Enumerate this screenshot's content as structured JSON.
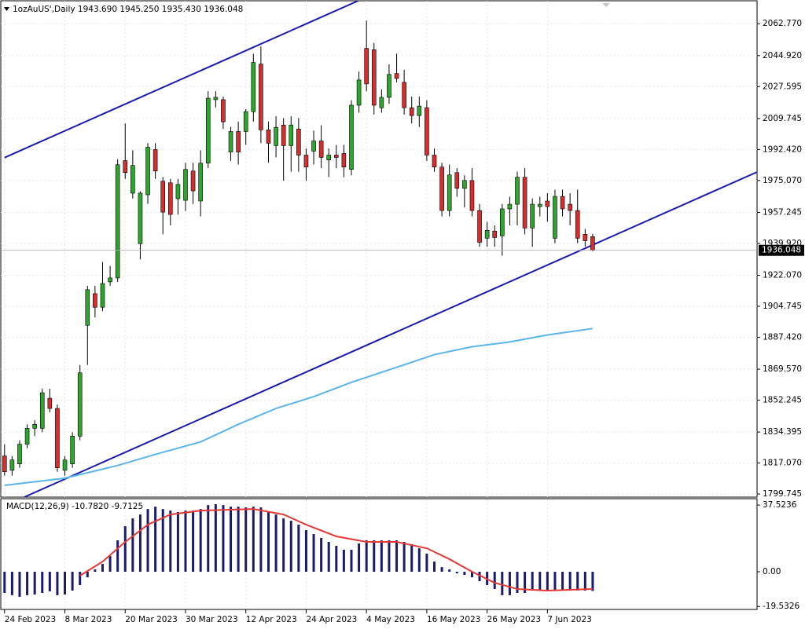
{
  "chart_data": [
    {
      "type": "candlestick",
      "title": "1ozAuUS',Daily 1943.690 1945.250 1935.430 1936.048",
      "up_color": "#2fa52f",
      "down_color": "#d32f2f",
      "wick_color": "#000000",
      "ohlc": [
        [
          1821.0,
          1827.6,
          1810.0,
          1812.2
        ],
        [
          1813.0,
          1821.0,
          1810.0,
          1818.8
        ],
        [
          1816.6,
          1829.8,
          1814.4,
          1827.6
        ],
        [
          1827.6,
          1838.7,
          1825.4,
          1836.5
        ],
        [
          1836.5,
          1841.0,
          1832.1,
          1838.7
        ],
        [
          1836.5,
          1858.6,
          1834.3,
          1856.4
        ],
        [
          1853.3,
          1858.6,
          1845.4,
          1847.6
        ],
        [
          1847.6,
          1849.8,
          1812.2,
          1814.4
        ],
        [
          1813.0,
          1821.0,
          1810.0,
          1818.8
        ],
        [
          1816.6,
          1834.3,
          1814.4,
          1832.1
        ],
        [
          1832.1,
          1871.9,
          1829.8,
          1867.5
        ],
        [
          1894.1,
          1916.2,
          1871.9,
          1914.0
        ],
        [
          1911.8,
          1916.2,
          1898.5,
          1904.2
        ],
        [
          1904.2,
          1929.5,
          1902.0,
          1917.5
        ],
        [
          1918.4,
          1927.3,
          1916.2,
          1920.6
        ],
        [
          1920.6,
          1987.0,
          1918.4,
          1983.9
        ],
        [
          1986.2,
          2007.0,
          1976.0,
          1979.5
        ],
        [
          1968.0,
          1992.0,
          1965.0,
          1983.5
        ],
        [
          1939.7,
          1969.0,
          1931.0,
          1968.0
        ],
        [
          1967.1,
          1996.0,
          1962.0,
          1993.7
        ],
        [
          1992.4,
          1996.0,
          1976.0,
          1980.4
        ],
        [
          1974.7,
          1977.0,
          1945.0,
          1957.4
        ],
        [
          1973.8,
          1976.0,
          1950.0,
          1956.1
        ],
        [
          1964.9,
          1976.0,
          1956.0,
          1972.9
        ],
        [
          1964.0,
          1985.0,
          1958.0,
          1981.3
        ],
        [
          1980.4,
          1985.0,
          1962.0,
          1969.3
        ],
        [
          1963.6,
          1992.0,
          1955.0,
          1984.8
        ],
        [
          1984.8,
          2025.0,
          1982.0,
          2021.1
        ],
        [
          2020.3,
          2025.0,
          2016.0,
          2021.6
        ],
        [
          2020.3,
          2022.0,
          2004.0,
          2007.9
        ],
        [
          1991.0,
          2005.0,
          1986.0,
          2002.5
        ],
        [
          2002.5,
          2008.0,
          1984.0,
          1991.0
        ],
        [
          2002.5,
          2015.0,
          1995.0,
          2013.6
        ],
        [
          2013.6,
          2046.0,
          2008.0,
          2041.1
        ],
        [
          2040.2,
          2050.0,
          1996.0,
          2003.4
        ],
        [
          2003.4,
          2008.0,
          1985.0,
          1995.9
        ],
        [
          1994.6,
          2011.0,
          1988.0,
          2004.8
        ],
        [
          2006.1,
          2010.0,
          1975.0,
          1994.6
        ],
        [
          1994.6,
          2011.0,
          1980.0,
          2006.1
        ],
        [
          2003.9,
          2010.0,
          1980.0,
          1989.3
        ],
        [
          1989.3,
          1993.0,
          1975.0,
          1982.6
        ],
        [
          1991.5,
          2003.0,
          1984.0,
          1997.2
        ],
        [
          1997.2,
          2006.0,
          1982.0,
          1988.0
        ],
        [
          1986.6,
          1993.0,
          1977.0,
          1989.3
        ],
        [
          1989.3,
          1995.0,
          1982.0,
          1988.0
        ],
        [
          1990.2,
          1995.0,
          1977.0,
          1982.6
        ],
        [
          1981.3,
          2020.0,
          1978.0,
          2017.2
        ],
        [
          2017.2,
          2036.0,
          2013.0,
          2031.3
        ],
        [
          2049.0,
          2064.5,
          2025.0,
          2029.1
        ],
        [
          2048.2,
          2052.0,
          2012.0,
          2017.2
        ],
        [
          2015.8,
          2026.0,
          2013.0,
          2021.6
        ],
        [
          2021.6,
          2040.0,
          2018.0,
          2034.4
        ],
        [
          2034.9,
          2046.0,
          2030.0,
          2032.2
        ],
        [
          2030.0,
          2037.0,
          2012.0,
          2015.8
        ],
        [
          2015.8,
          2022.0,
          2007.0,
          2011.4
        ],
        [
          2011.4,
          2022.0,
          2005.0,
          2016.7
        ],
        [
          2015.8,
          2020.0,
          1986.0,
          1989.3
        ],
        [
          1989.3,
          1993.0,
          1980.0,
          1982.6
        ],
        [
          1982.6,
          1985.0,
          1955.0,
          1958.3
        ],
        [
          1958.3,
          1984.0,
          1955.0,
          1978.2
        ],
        [
          1979.5,
          1982.0,
          1966.0,
          1970.7
        ],
        [
          1970.7,
          1978.0,
          1960.0,
          1975.1
        ],
        [
          1975.1,
          1982.0,
          1955.0,
          1958.3
        ],
        [
          1958.3,
          1962.0,
          1938.0,
          1940.5
        ],
        [
          1942.8,
          1952.0,
          1938.0,
          1947.2
        ],
        [
          1946.8,
          1950.0,
          1938.0,
          1943.2
        ],
        [
          1944.1,
          1962.0,
          1933.0,
          1959.2
        ],
        [
          1959.2,
          1966.0,
          1950.0,
          1961.8
        ],
        [
          1961.8,
          1980.0,
          1950.0,
          1976.9
        ],
        [
          1976.9,
          1982.0,
          1945.0,
          1948.5
        ],
        [
          1948.5,
          1965.0,
          1938.0,
          1961.8
        ],
        [
          1960.5,
          1966.0,
          1955.0,
          1961.8
        ],
        [
          1963.6,
          1968.0,
          1952.0,
          1960.5
        ],
        [
          1942.8,
          1970.0,
          1940.0,
          1966.2
        ],
        [
          1966.2,
          1970.0,
          1955.0,
          1959.2
        ],
        [
          1961.8,
          1968.0,
          1950.0,
          1958.3
        ],
        [
          1958.3,
          1970.0,
          1940.0,
          1942.8
        ],
        [
          1945.0,
          1948.0,
          1938.0,
          1941.4
        ],
        [
          1943.69,
          1945.25,
          1935.43,
          1936.048
        ]
      ],
      "moving_average": {
        "color": "#5ab4ee",
        "x": [
          0,
          8,
          15,
          20,
          26,
          31,
          36,
          41,
          46,
          52,
          57,
          62,
          67,
          72,
          78
        ],
        "values": [
          1804.6,
          1808.6,
          1815.7,
          1821.9,
          1828.9,
          1838.7,
          1847.6,
          1854.2,
          1862.2,
          1870.6,
          1877.7,
          1882.1,
          1884.8,
          1888.7,
          1892.3
        ]
      },
      "trendlines": [
        {
          "color": "#1a1ab0",
          "x": [
            0,
            46.9
          ],
          "values": [
            1987.9,
            2075.6
          ]
        },
        {
          "color": "#1a1ab0",
          "x": [
            2.6,
            100
          ],
          "values": [
            1798.0,
            1980.2
          ]
        }
      ],
      "xlim": [
        -0.5,
        99.8
      ],
      "xticks": [
        {
          "value": 0,
          "label": "24 Feb 2023"
        },
        {
          "value": 8,
          "label": "8 Mar 2023"
        },
        {
          "value": 16,
          "label": "20 Mar 2023"
        },
        {
          "value": 24,
          "label": "30 Mar 2023"
        },
        {
          "value": 32,
          "label": "12 Apr 2023"
        },
        {
          "value": 40,
          "label": "24 Apr 2023"
        },
        {
          "value": 48,
          "label": "4 May 2023"
        },
        {
          "value": 56,
          "label": "16 May 2023"
        },
        {
          "value": 64,
          "label": "26 May 2023"
        },
        {
          "value": 72,
          "label": "7 Jun 2023"
        }
      ],
      "ylim": [
        1798.0,
        2075.6
      ],
      "yticks": [
        {
          "value": 2062.77,
          "label": "2062.770"
        },
        {
          "value": 2044.92,
          "label": "2044.920"
        },
        {
          "value": 2027.595,
          "label": "2027.595"
        },
        {
          "value": 2009.745,
          "label": "2009.745"
        },
        {
          "value": 1992.42,
          "label": "1992.420"
        },
        {
          "value": 1975.07,
          "label": "1975.070"
        },
        {
          "value": 1957.245,
          "label": "1957.245"
        },
        {
          "value": 1939.92,
          "label": "1939.920"
        },
        {
          "value": 1922.07,
          "label": "1922.070"
        },
        {
          "value": 1904.745,
          "label": "1904.745"
        },
        {
          "value": 1887.42,
          "label": "1887.420"
        },
        {
          "value": 1869.57,
          "label": "1869.570"
        },
        {
          "value": 1852.245,
          "label": "1852.245"
        },
        {
          "value": 1834.395,
          "label": "1834.395"
        },
        {
          "value": 1817.07,
          "label": "1817.070"
        },
        {
          "value": 1799.745,
          "label": "1799.745"
        }
      ],
      "grid": true
    },
    {
      "type": "macd",
      "title": "MACD(12,26,9) -10.7820 -9.7125",
      "histogram": {
        "color": "#1b1b6b",
        "values": [
          -11.9,
          -13.2,
          -14.1,
          -13.2,
          -12.8,
          -11.9,
          -11.0,
          -13.2,
          -12.8,
          -10.6,
          -7.5,
          -3.1,
          1.3,
          4.4,
          8.8,
          17.7,
          25.6,
          30.0,
          32.2,
          35.3,
          36.6,
          35.3,
          34.4,
          33.6,
          34.4,
          34.4,
          35.3,
          37.5,
          38.0,
          37.5,
          36.6,
          36.6,
          36.2,
          36.6,
          36.2,
          33.6,
          32.2,
          30.0,
          28.7,
          26.5,
          23.4,
          21.2,
          19.0,
          16.8,
          14.6,
          12.4,
          12.4,
          15.9,
          17.7,
          17.7,
          17.7,
          17.7,
          17.7,
          16.8,
          15.5,
          13.2,
          10.2,
          5.7,
          2.6,
          1.3,
          -0.9,
          -1.8,
          -3.1,
          -5.3,
          -7.5,
          -9.7,
          -13.2,
          -13.2,
          -11.9,
          -11.9,
          -10.6,
          -10.6,
          -10.6,
          -10.6,
          -10.6,
          -10.6,
          -10.6,
          -10.6,
          -10.782
        ]
      },
      "signal": {
        "color": "#e53935",
        "x": [
          10,
          13,
          16,
          19,
          22,
          26,
          33,
          37,
          40,
          44,
          48,
          52,
          56,
          59,
          62,
          65,
          68,
          72,
          78
        ],
        "values": [
          -2.2,
          5.7,
          16.8,
          26.5,
          32.2,
          34.4,
          35.3,
          32.2,
          26.5,
          19.9,
          16.8,
          16.8,
          13.2,
          7.1,
          0,
          -6.2,
          -9.7,
          -10.6,
          -9.7125
        ]
      },
      "xlim": [
        -0.5,
        99.8
      ],
      "ylim": [
        -21.2,
        41.1
      ],
      "yticks": [
        37.5236,
        {
          "value": 0,
          "label": "0.00"
        },
        -19.5326
      ]
    }
  ]
}
